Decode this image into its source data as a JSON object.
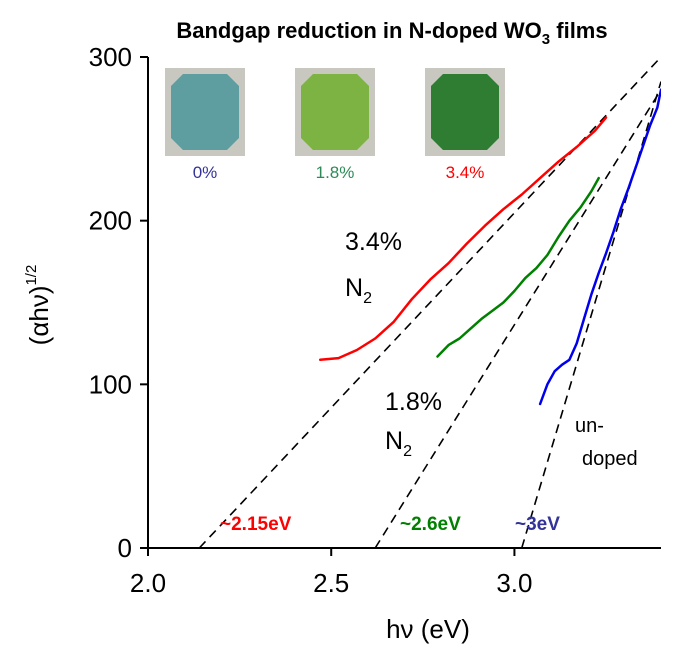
{
  "colors": {
    "red": "#ff0000",
    "green": "#008000",
    "blue": "#0000ee",
    "navy": "#333399",
    "fit_line": "#000000"
  },
  "chart_data": {
    "type": "line",
    "title_main": "Bandgap reduction in N-doped WO",
    "title_sub": "3",
    "title_tail": " films",
    "xlabel": "hν (eV)",
    "ylabel_main": "(αhν)",
    "ylabel_sup": "1/2",
    "xlim": [
      2.0,
      3.4
    ],
    "ylim": [
      0,
      300
    ],
    "x_ticks": [
      2.0,
      2.5,
      3.0
    ],
    "x_tick_labels": [
      "2.0",
      "2.5",
      "3.0"
    ],
    "y_ticks": [
      0,
      100,
      200,
      300
    ],
    "y_tick_labels": [
      "0",
      "100",
      "200",
      "300"
    ],
    "series": [
      {
        "name": "3.4%",
        "color": "#ff0000",
        "x": [
          2.47,
          2.52,
          2.57,
          2.62,
          2.67,
          2.72,
          2.77,
          2.82,
          2.87,
          2.92,
          2.97,
          3.02,
          3.07,
          3.12,
          3.17,
          3.22,
          3.25
        ],
        "y": [
          115,
          116,
          121,
          128,
          138,
          152,
          164,
          174,
          186,
          197,
          207,
          216,
          226,
          236,
          245,
          255,
          263
        ]
      },
      {
        "name": "1.8%",
        "color": "#008000",
        "x": [
          2.79,
          2.82,
          2.85,
          2.88,
          2.91,
          2.94,
          2.97,
          3.0,
          3.03,
          3.06,
          3.09,
          3.12,
          3.15,
          3.18,
          3.21,
          3.23
        ],
        "y": [
          117,
          124,
          128,
          134,
          140,
          145,
          150,
          157,
          165,
          171,
          179,
          190,
          200,
          208,
          218,
          226
        ]
      },
      {
        "name": "0%",
        "color": "#0000ee",
        "x": [
          3.07,
          3.09,
          3.11,
          3.13,
          3.15,
          3.17,
          3.19,
          3.21,
          3.23,
          3.25,
          3.27,
          3.29,
          3.31,
          3.33,
          3.35,
          3.37,
          3.39,
          3.4
        ],
        "y": [
          88,
          100,
          108,
          112,
          115,
          125,
          140,
          155,
          168,
          180,
          193,
          207,
          219,
          232,
          245,
          258,
          269,
          280
        ]
      }
    ],
    "fit_lines": [
      {
        "x": [
          2.14,
          3.4
        ],
        "y": [
          0,
          300
        ]
      },
      {
        "x": [
          2.62,
          3.4
        ],
        "y": [
          0,
          280
        ]
      },
      {
        "x": [
          3.02,
          3.4
        ],
        "y": [
          0,
          285
        ]
      }
    ],
    "annotations": {
      "concentration_34_line1": "3.4%",
      "concentration_34_line2": "N",
      "concentration_34_sub": "2",
      "concentration_18_line1": "1.8%",
      "concentration_18_line2": "N",
      "concentration_18_sub": "2",
      "undoped_line1": "un-",
      "undoped_line2": "doped",
      "gap_34": "~2.15eV",
      "gap_18": "~2.6eV",
      "gap_0": "~3eV"
    },
    "inset_samples": [
      {
        "label": "0%",
        "label_color": "#333399",
        "film_color": "#5f9ea0"
      },
      {
        "label": "1.8%",
        "label_color": "#2e8b57",
        "film_color": "#7cb342"
      },
      {
        "label": "3.4%",
        "label_color": "#ff0000",
        "film_color": "#2e7d32"
      }
    ]
  }
}
